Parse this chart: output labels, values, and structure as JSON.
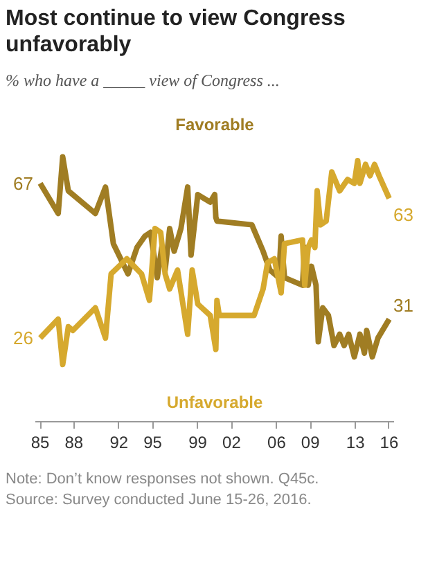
{
  "chart_data": {
    "type": "line",
    "title": "Most continue to view Congress unfavorably",
    "subtitle": "% who have a _____ view of Congress ...",
    "xlim": [
      1984.6,
      2016.4
    ],
    "xticks": [
      {
        "value": 1985,
        "label": "85"
      },
      {
        "value": 1988,
        "label": "88"
      },
      {
        "value": 1992,
        "label": "92"
      },
      {
        "value": 1995,
        "label": "95"
      },
      {
        "value": 1999,
        "label": "99"
      },
      {
        "value": 2002,
        "label": "02"
      },
      {
        "value": 2006,
        "label": "06"
      },
      {
        "value": 2009,
        "label": "09"
      },
      {
        "value": 2013,
        "label": "13"
      },
      {
        "value": 2016,
        "label": "16"
      }
    ],
    "series": [
      {
        "name": "Favorable",
        "color": "#a07d23",
        "x": [
          1985,
          1986.6,
          1987,
          1987.5,
          1989.9,
          1990.8,
          1991.5,
          1992.8,
          1993.6,
          1994.3,
          1994.8,
          1995.4,
          1995.8,
          1996.1,
          1996.5,
          1996.9,
          1997.5,
          1998.1,
          1998.4,
          1999,
          2000.1,
          2000.5,
          2000.6,
          2000.7,
          2003.8,
          2004.8,
          2005.4,
          2006.2,
          2006.4,
          2006.7,
          2008.3,
          2008.5,
          2008.8,
          2009.1,
          2009.5,
          2009.7,
          2010.1,
          2010.6,
          2011.1,
          2011.6,
          2012,
          2012.4,
          2012.9,
          2013.4,
          2013.8,
          2014,
          2014.5,
          2015,
          2016
        ],
        "values": [
          67,
          59,
          74,
          65,
          59,
          66,
          51,
          43,
          50,
          53,
          54,
          42,
          50,
          44,
          55,
          49,
          55,
          66,
          48,
          64,
          62,
          64,
          58,
          57,
          56,
          49,
          44,
          42,
          53,
          42,
          40,
          50,
          40,
          45,
          40,
          25,
          34,
          32,
          24,
          27,
          24,
          27,
          21,
          27,
          22,
          28,
          21,
          26,
          31
        ],
        "value_labels": [
          "67",
          null,
          null,
          null,
          null,
          null,
          null,
          null,
          null,
          null,
          null,
          null,
          null,
          null,
          null,
          null,
          null,
          null,
          null,
          null,
          null,
          null,
          null,
          null,
          null,
          null,
          null,
          null,
          null,
          null,
          null,
          null,
          null,
          null,
          null,
          null,
          null,
          null,
          null,
          null,
          null,
          null,
          null,
          null,
          null,
          null,
          null,
          null,
          "31"
        ]
      },
      {
        "name": "Unfavorable",
        "color": "#d6a92e",
        "x": [
          1985,
          1986.6,
          1987,
          1987.5,
          1987.9,
          1989.9,
          1990.8,
          1991.3,
          1992.7,
          1994,
          1994.7,
          1995.2,
          1995.7,
          1996.1,
          1996.5,
          1997.2,
          1998.1,
          1998.5,
          1999,
          2000.1,
          2000.6,
          2000.7,
          2000.9,
          2004,
          2004.8,
          2005.2,
          2005.8,
          2006.4,
          2006.7,
          2008.3,
          2008.5,
          2008.8,
          2009.1,
          2009.4,
          2009.6,
          2009.9,
          2010.4,
          2010.9,
          2011.6,
          2012.3,
          2012.9,
          2013.2,
          2013.4,
          2013.9,
          2014.3,
          2014.7,
          2015.1,
          2016
        ],
        "values": [
          26,
          31,
          19,
          29,
          28,
          34,
          26,
          43,
          47,
          43,
          36,
          55,
          54,
          43,
          39,
          44,
          27,
          44,
          35,
          32,
          23,
          36,
          32,
          32,
          39,
          46,
          47,
          38,
          51,
          52,
          40,
          50,
          52,
          50,
          65,
          56,
          57,
          70,
          65,
          68,
          67,
          73,
          67,
          72,
          69,
          72,
          69,
          63
        ],
        "value_labels": [
          "26",
          null,
          null,
          null,
          null,
          null,
          null,
          null,
          null,
          null,
          null,
          null,
          null,
          null,
          null,
          null,
          null,
          null,
          null,
          null,
          null,
          null,
          null,
          null,
          null,
          null,
          null,
          null,
          null,
          null,
          null,
          null,
          null,
          null,
          null,
          null,
          null,
          null,
          null,
          null,
          null,
          null,
          null,
          null,
          null,
          null,
          null,
          "63"
        ]
      }
    ],
    "annotations": [
      "Note: Don’t know responses not shown. Q45c.",
      "Source: Survey conducted June 15-26, 2016."
    ]
  }
}
